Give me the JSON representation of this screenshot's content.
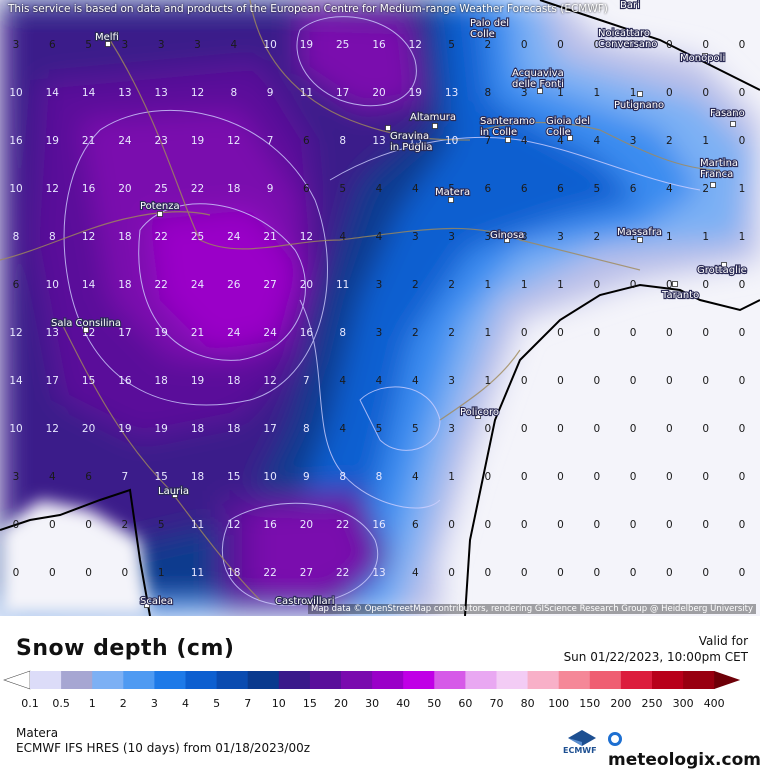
{
  "header": {
    "service_note": "This service is based on data and products of the European Centre for Medium-range Weather Forecasts (ECMWF)"
  },
  "map": {
    "attribution": "Map data © OpenStreetMap contributors, rendering GIScience Research Group @ Heidelberg University",
    "cities": [
      {
        "name": "Bari"
      },
      {
        "name": "Melfi"
      },
      {
        "name": "Palo del Colle",
        "lines": [
          "Palo del",
          "Colle"
        ]
      },
      {
        "name": "Noicattaro Conversano",
        "lines": [
          "Noicattaro",
          "Conversano"
        ]
      },
      {
        "name": "Monopoli"
      },
      {
        "name": "Acquaviva delle Fonti",
        "lines": [
          "Acquaviva",
          "delle Fonti"
        ]
      },
      {
        "name": "Putignano"
      },
      {
        "name": "Altamura"
      },
      {
        "name": "Gravina in Puglia",
        "lines": [
          "Gravina",
          "in Puglia"
        ]
      },
      {
        "name": "Santeramo in Colle",
        "lines": [
          "Santeramo",
          "in Colle"
        ]
      },
      {
        "name": "Gioia del Colle",
        "lines": [
          "Gioia del",
          "Colle"
        ]
      },
      {
        "name": "Fasano"
      },
      {
        "name": "Martina Franca",
        "lines": [
          "Martina",
          "Franca"
        ]
      },
      {
        "name": "Matera"
      },
      {
        "name": "Potenza"
      },
      {
        "name": "Ginosa"
      },
      {
        "name": "Massafra"
      },
      {
        "name": "Grottaglie"
      },
      {
        "name": "Taranto"
      },
      {
        "name": "Sala Consilina"
      },
      {
        "name": "Policoro"
      },
      {
        "name": "Lauria"
      },
      {
        "name": "Scalea"
      },
      {
        "name": "Castrovillari"
      }
    ],
    "grid_values": [
      [
        "3",
        "6",
        "5",
        "3",
        "3",
        "3",
        "4",
        "10",
        "19",
        "25",
        "16",
        "12",
        "5",
        "2",
        "0",
        "0",
        "0",
        "0",
        "0",
        "0",
        "0"
      ],
      [
        "10",
        "14",
        "14",
        "13",
        "13",
        "12",
        "8",
        "9",
        "11",
        "17",
        "20",
        "19",
        "13",
        "8",
        "3",
        "1",
        "1",
        "1",
        "0",
        "0",
        "0"
      ],
      [
        "16",
        "19",
        "21",
        "24",
        "23",
        "19",
        "12",
        "7",
        "6",
        "8",
        "13",
        "13",
        "10",
        "7",
        "4",
        "4",
        "4",
        "3",
        "2",
        "1",
        "0"
      ],
      [
        "10",
        "12",
        "16",
        "20",
        "25",
        "22",
        "18",
        "9",
        "6",
        "5",
        "4",
        "4",
        "5",
        "6",
        "6",
        "6",
        "5",
        "6",
        "4",
        "2",
        "1"
      ],
      [
        "8",
        "8",
        "12",
        "18",
        "22",
        "25",
        "24",
        "21",
        "12",
        "4",
        "4",
        "3",
        "3",
        "3",
        "3",
        "3",
        "2",
        "1",
        "1",
        "1",
        "1"
      ],
      [
        "6",
        "10",
        "14",
        "18",
        "22",
        "24",
        "26",
        "27",
        "20",
        "11",
        "3",
        "2",
        "2",
        "1",
        "1",
        "1",
        "0",
        "0",
        "0",
        "0",
        "0"
      ],
      [
        "12",
        "13",
        "12",
        "17",
        "19",
        "21",
        "24",
        "24",
        "16",
        "8",
        "3",
        "2",
        "2",
        "1",
        "0",
        "0",
        "0",
        "0",
        "0",
        "0",
        "0"
      ],
      [
        "14",
        "17",
        "15",
        "16",
        "18",
        "19",
        "18",
        "12",
        "7",
        "4",
        "4",
        "4",
        "3",
        "1",
        "0",
        "0",
        "0",
        "0",
        "0",
        "0",
        "0"
      ],
      [
        "10",
        "12",
        "20",
        "19",
        "19",
        "18",
        "18",
        "17",
        "8",
        "4",
        "5",
        "5",
        "3",
        "0",
        "0",
        "0",
        "0",
        "0",
        "0",
        "0",
        "0"
      ],
      [
        "3",
        "4",
        "6",
        "7",
        "15",
        "18",
        "15",
        "10",
        "9",
        "8",
        "8",
        "4",
        "1",
        "0",
        "0",
        "0",
        "0",
        "0",
        "0",
        "0",
        "0"
      ],
      [
        "0",
        "0",
        "0",
        "2",
        "5",
        "11",
        "12",
        "16",
        "20",
        "22",
        "16",
        "6",
        "0",
        "0",
        "0",
        "0",
        "0",
        "0",
        "0",
        "0",
        "0"
      ],
      [
        "0",
        "0",
        "0",
        "0",
        "1",
        "11",
        "18",
        "22",
        "27",
        "22",
        "13",
        "4",
        "0",
        "0",
        "0",
        "0",
        "0",
        "0",
        "0",
        "0",
        "0"
      ]
    ]
  },
  "legend": {
    "title": "Snow depth (cm)",
    "valid_label": "Valid for",
    "valid_time": "Sun 01/22/2023, 10:00pm CET",
    "ticks": [
      "0.1",
      "0.5",
      "1",
      "2",
      "3",
      "4",
      "5",
      "7",
      "10",
      "15",
      "20",
      "30",
      "40",
      "50",
      "60",
      "70",
      "80",
      "100",
      "150",
      "200",
      "250",
      "300",
      "400"
    ],
    "colors": [
      "#ffffff",
      "#dcdcf8",
      "#a6a6d2",
      "#7cb0f4",
      "#4e9af2",
      "#1e7ae8",
      "#0d5fd0",
      "#0a4bb0",
      "#0a3a8e",
      "#3a1a8a",
      "#5a0f9a",
      "#7a0aae",
      "#9a00c8",
      "#c000e6",
      "#d65ae8",
      "#e9a8f2",
      "#f3ccf5",
      "#f8b0c8",
      "#f58898",
      "#ef5e72",
      "#dc1c3c",
      "#b8001a",
      "#980010",
      "#6e0008"
    ],
    "location": "Matera",
    "model": "ECMWF IFS HRES (10 days) from 01/18/2023/00z",
    "ecmwf_label": "ECMWF",
    "brand": "meteologix.com"
  }
}
